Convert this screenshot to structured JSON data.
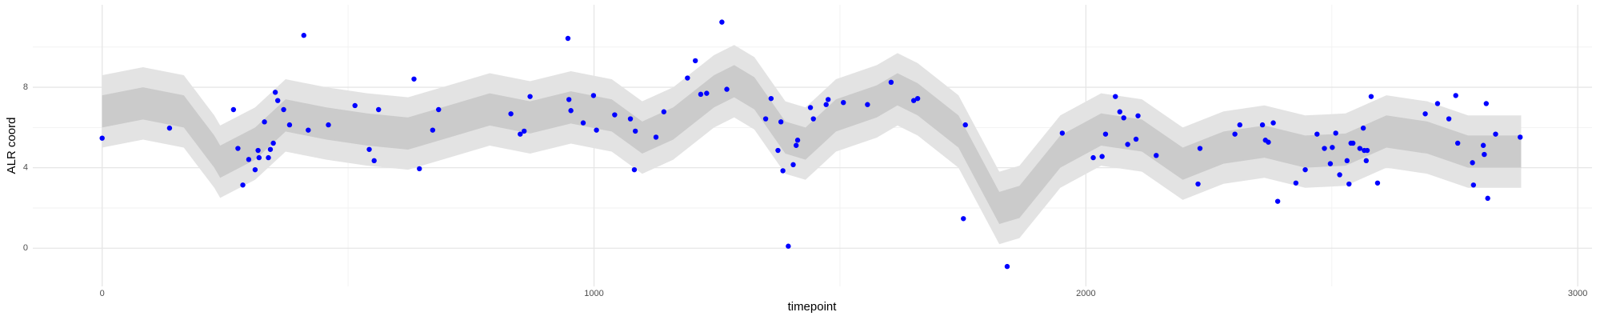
{
  "chart_data": {
    "type": "scatter",
    "xlabel": "timepoint",
    "ylabel": "ALR coord",
    "xlim": [
      -141,
      3029
    ],
    "ylim": [
      -1.9,
      12.1
    ],
    "xticks": [
      0,
      1000,
      2000,
      3000
    ],
    "yticks": [
      0,
      4,
      8
    ],
    "x_minor_grid": [
      500,
      1500,
      2500
    ],
    "y_minor_grid": [
      2,
      6,
      10
    ],
    "grid": true,
    "ribbons": [
      {
        "color": "#e3e3e3",
        "x": [
          0,
          83,
          166,
          228,
          240,
          311,
          373,
          456,
          539,
          622,
          705,
          788,
          870,
          953,
          1036,
          1098,
          1161,
          1244,
          1285,
          1326,
          1389,
          1430,
          1492,
          1575,
          1617,
          1658,
          1741,
          1824,
          1865,
          1948,
          2031,
          2114,
          2197,
          2280,
          2363,
          2446,
          2528,
          2611,
          2694,
          2777,
          2885
        ],
        "lower": [
          5.0,
          5.4,
          5.0,
          3.0,
          2.5,
          3.4,
          4.8,
          4.4,
          4.1,
          3.9,
          4.5,
          5.1,
          4.7,
          5.2,
          4.8,
          3.7,
          4.4,
          6.0,
          6.5,
          5.9,
          3.7,
          3.4,
          4.8,
          5.5,
          6.1,
          5.6,
          4.0,
          0.2,
          0.5,
          3.0,
          4.1,
          3.8,
          2.4,
          3.2,
          3.5,
          3.0,
          3.1,
          4.0,
          3.7,
          3.0,
          3.0
        ],
        "upper": [
          8.6,
          9.0,
          8.6,
          6.6,
          6.1,
          7.0,
          8.4,
          8.0,
          7.7,
          7.5,
          8.1,
          8.7,
          8.3,
          8.8,
          8.4,
          7.3,
          8.0,
          9.6,
          10.1,
          9.5,
          7.3,
          7.0,
          8.4,
          9.1,
          9.7,
          9.2,
          7.6,
          3.8,
          4.1,
          6.6,
          7.7,
          7.4,
          6.0,
          6.8,
          7.1,
          6.6,
          6.7,
          7.6,
          7.3,
          6.6,
          6.6
        ]
      },
      {
        "color": "#cbcbcb",
        "x": [
          0,
          83,
          166,
          228,
          240,
          311,
          373,
          456,
          539,
          622,
          705,
          788,
          870,
          953,
          1036,
          1098,
          1161,
          1244,
          1285,
          1326,
          1389,
          1430,
          1492,
          1575,
          1617,
          1658,
          1741,
          1824,
          1865,
          1948,
          2031,
          2114,
          2197,
          2280,
          2363,
          2446,
          2528,
          2611,
          2694,
          2777,
          2885
        ],
        "lower": [
          6.0,
          6.4,
          6.0,
          4.0,
          3.5,
          4.4,
          5.8,
          5.4,
          5.1,
          4.9,
          5.5,
          6.1,
          5.7,
          6.2,
          5.8,
          4.7,
          5.4,
          7.0,
          7.5,
          6.9,
          4.7,
          4.4,
          5.8,
          6.5,
          7.1,
          6.6,
          5.0,
          1.2,
          1.5,
          4.0,
          5.1,
          4.8,
          3.4,
          4.2,
          4.5,
          4.0,
          4.1,
          5.0,
          4.7,
          4.0,
          4.0
        ],
        "upper": [
          7.6,
          8.0,
          7.6,
          5.6,
          5.1,
          6.0,
          7.4,
          7.0,
          6.7,
          6.5,
          7.1,
          7.7,
          7.3,
          7.8,
          7.4,
          6.3,
          7.0,
          8.6,
          9.1,
          8.5,
          6.3,
          6.0,
          7.4,
          8.1,
          8.7,
          8.2,
          6.6,
          2.8,
          3.1,
          5.6,
          6.7,
          6.4,
          5.0,
          5.8,
          6.1,
          5.6,
          5.7,
          6.6,
          6.3,
          5.6,
          5.6
        ]
      }
    ],
    "series": [
      {
        "color": "#0000ff",
        "x": [
          0,
          137,
          267,
          276,
          286,
          298,
          311,
          317,
          319,
          330,
          338,
          342,
          348,
          352,
          357,
          369,
          381,
          410,
          419,
          460,
          514,
          543,
          553,
          562,
          634,
          645,
          672,
          684,
          831,
          850,
          858,
          870,
          947,
          949,
          953,
          978,
          999,
          1005,
          1042,
          1074,
          1082,
          1084,
          1126,
          1142,
          1190,
          1206,
          1217,
          1229,
          1260,
          1270,
          1349,
          1360,
          1374,
          1380,
          1384,
          1395,
          1405,
          1411,
          1414,
          1440,
          1446,
          1472,
          1476,
          1507,
          1556,
          1604,
          1650,
          1658,
          1751,
          1755,
          1840,
          1952,
          2015,
          2033,
          2040,
          2060,
          2069,
          2077,
          2085,
          2102,
          2106,
          2143,
          2228,
          2232,
          2303,
          2313,
          2359,
          2365,
          2371,
          2381,
          2390,
          2427,
          2446,
          2470,
          2485,
          2497,
          2501,
          2508,
          2516,
          2531,
          2535,
          2539,
          2543,
          2557,
          2564,
          2566,
          2570,
          2572,
          2580,
          2593,
          2690,
          2715,
          2738,
          2752,
          2756,
          2786,
          2788,
          2808,
          2810,
          2814,
          2817,
          2833,
          2883
        ],
        "values": [
          5.47,
          5.97,
          6.89,
          4.96,
          3.14,
          4.41,
          3.9,
          4.86,
          4.5,
          6.28,
          4.5,
          4.91,
          5.22,
          7.75,
          7.34,
          6.89,
          6.13,
          10.58,
          5.87,
          6.13,
          7.09,
          4.91,
          4.35,
          6.89,
          8.41,
          3.95,
          5.87,
          6.89,
          6.68,
          5.67,
          5.82,
          7.54,
          10.43,
          7.39,
          6.84,
          6.23,
          7.59,
          5.87,
          6.63,
          6.43,
          3.9,
          5.82,
          5.52,
          6.78,
          8.46,
          9.32,
          7.65,
          7.7,
          11.24,
          7.9,
          6.43,
          7.44,
          4.86,
          6.28,
          3.85,
          0.1,
          4.15,
          5.11,
          5.37,
          6.99,
          6.43,
          7.14,
          7.39,
          7.24,
          7.14,
          8.25,
          7.34,
          7.44,
          1.47,
          6.13,
          -0.91,
          5.72,
          4.5,
          4.56,
          5.67,
          7.54,
          6.78,
          6.48,
          5.16,
          5.42,
          6.58,
          4.61,
          3.19,
          4.96,
          5.67,
          6.13,
          6.13,
          5.37,
          5.27,
          6.23,
          2.33,
          3.24,
          3.9,
          5.67,
          4.96,
          4.2,
          5.01,
          5.72,
          3.65,
          4.35,
          3.19,
          5.22,
          5.22,
          4.96,
          5.97,
          4.86,
          4.35,
          4.86,
          7.54,
          3.24,
          6.68,
          7.19,
          6.43,
          7.59,
          5.22,
          4.25,
          3.14,
          5.11,
          4.66,
          7.19,
          2.48,
          5.67,
          5.52
        ]
      }
    ]
  }
}
